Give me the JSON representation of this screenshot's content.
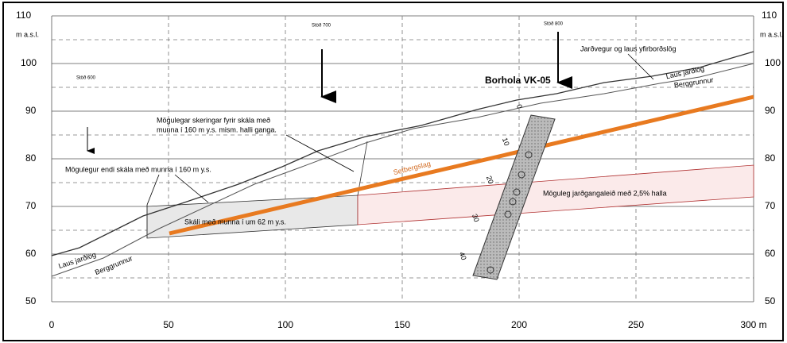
{
  "axes": {
    "y_unit": "m a.s.l.",
    "y_labels": [
      "110",
      "100",
      "90",
      "80",
      "70",
      "60",
      "50"
    ],
    "x_labels": [
      "0",
      "50",
      "100",
      "150",
      "200",
      "250",
      "300 m"
    ]
  },
  "stations": [
    "Stöð 600",
    "Stöð 700",
    "Stöð 800"
  ],
  "labels": {
    "borehole": "Borhola VK-05",
    "surface": "Jarðvegur og laus yfirborðslög",
    "loose_right": "Laus jarðlög",
    "bedrock_right": "Berggrunnur",
    "loose_left": "Laus jarðlög",
    "bedrock_left": "Berggrunnur",
    "cuts_line1": "Mögulegar skeringar fyrir skála með",
    "cuts_line2": "munna í 160 m y.s. mism. halli ganga.",
    "end": "Mögulegur endi skála með munna í 160 m y.s.",
    "layer": "Setbergslag",
    "tunnel": "Möguleg jarðgangaleið með 2,5% halla",
    "hall": "Skáli með munna í um 62 m y.s."
  },
  "borehole_depths": [
    "0",
    "10",
    "20",
    "30",
    "40"
  ]
}
